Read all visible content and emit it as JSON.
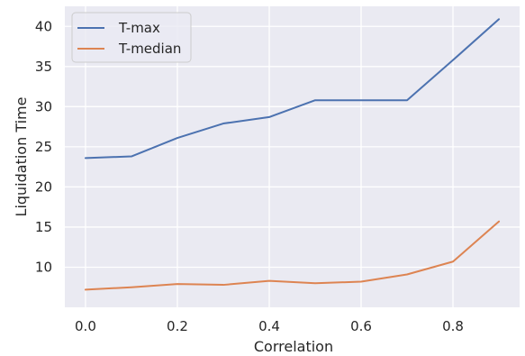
{
  "chart_data": {
    "type": "line",
    "title": "",
    "xlabel": "Correlation",
    "ylabel": "Liquidation Time",
    "x": [
      0.0,
      0.1,
      0.2,
      0.3,
      0.4,
      0.5,
      0.6,
      0.7,
      0.8,
      0.9
    ],
    "series": [
      {
        "name": "T-max",
        "color": "#4c72b0",
        "values": [
          23.6,
          23.8,
          26.1,
          27.9,
          28.7,
          30.8,
          30.8,
          30.8,
          35.8,
          40.9
        ]
      },
      {
        "name": "T-median",
        "color": "#dd8452",
        "values": [
          7.2,
          7.5,
          7.9,
          7.8,
          8.3,
          8.0,
          8.2,
          9.1,
          10.7,
          15.7
        ]
      }
    ],
    "xlim": [
      -0.045,
      0.945
    ],
    "ylim": [
      5.0,
      42.5
    ],
    "xticks": [
      0.0,
      0.2,
      0.4,
      0.6,
      0.8
    ],
    "xtick_labels": [
      "0.0",
      "0.2",
      "0.4",
      "0.6",
      "0.8"
    ],
    "yticks": [
      10,
      15,
      20,
      25,
      30,
      35,
      40
    ],
    "ytick_labels": [
      "10",
      "15",
      "20",
      "25",
      "30",
      "35",
      "40"
    ],
    "grid": true,
    "legend_position": "upper-left",
    "background_color": "#eaeaf2",
    "grid_color": "#ffffff"
  }
}
